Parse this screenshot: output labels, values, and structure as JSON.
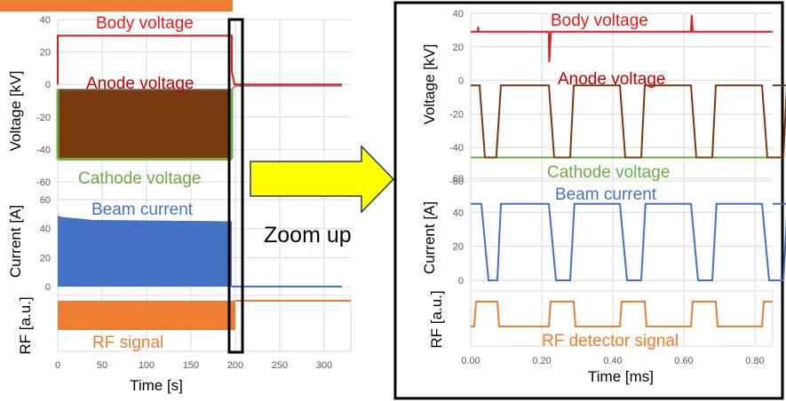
{
  "colors": {
    "body": "#e8181b",
    "anode": "#7a3a10",
    "cathode": "#6aac46",
    "beam": "#4472c4",
    "rf": "#ed7d31",
    "arrow_fill": "#ffff00",
    "arrow_stroke": "#1f3864",
    "grid": "#d9d9d9"
  },
  "zoom_label": "Zoom up",
  "chart_data": [
    {
      "type": "line",
      "xlabel": "Time [s]",
      "xlim": [
        0,
        320
      ],
      "xticks": [
        "0",
        "50",
        "100",
        "150",
        "200",
        "250",
        "300"
      ],
      "panels": [
        {
          "ylabel": "Voltage [kV]",
          "ylim": [
            -60,
            40
          ],
          "yticks": [
            "40",
            "20",
            "0",
            "-20",
            "-40",
            "-60"
          ],
          "series": [
            {
              "name": "Body voltage",
              "x": [
                0,
                0,
                196,
                196,
                199,
                320
              ],
              "values": [
                0,
                30,
                30,
                8,
                0,
                0
              ]
            },
            {
              "name": "Anode voltage",
              "x": [
                0,
                196,
                200,
                320
              ],
              "values": [
                -3,
                -3,
                -1,
                -1
              ],
              "band_low": -46
            },
            {
              "name": "Cathode voltage",
              "x": [
                0,
                196
              ],
              "values": [
                -46,
                -46
              ]
            }
          ]
        },
        {
          "ylabel": "Current [A]",
          "ylim": [
            0,
            60
          ],
          "yticks": [
            "60",
            "40",
            "20",
            "0"
          ],
          "series": [
            {
              "name": "Beam current",
              "x": [
                0,
                5,
                40,
                196,
                196,
                320
              ],
              "values": [
                49,
                48,
                46,
                45,
                0,
                0
              ],
              "band_low": 0
            }
          ]
        },
        {
          "ylabel": "RF [a.u.]",
          "series": [
            {
              "name": "RF signal",
              "x": [
                0,
                200,
                200,
                320
              ],
              "values": [
                1,
                1,
                1,
                1
              ],
              "band_low": 0
            }
          ]
        }
      ]
    },
    {
      "type": "line",
      "xlabel": "Time [ms]",
      "xlim": [
        0,
        0.85
      ],
      "xticks": [
        "0.00",
        "0.20",
        "0.40",
        "0.60",
        "0.80"
      ],
      "panels": [
        {
          "ylabel": "Voltage [kV]",
          "ylim": [
            -60,
            40
          ],
          "yticks": [
            "40",
            "20",
            "0",
            "-20",
            "-40",
            "-60"
          ],
          "series": [
            {
              "name": "Body voltage",
              "values_base": 29
            },
            {
              "name": "Anode voltage",
              "high": -3,
              "low": -46
            },
            {
              "name": "Cathode voltage",
              "values_base": -46
            }
          ]
        },
        {
          "ylabel": "Current [A]",
          "ylim": [
            0,
            60
          ],
          "yticks": [
            "60",
            "40",
            "20",
            "0"
          ],
          "series": [
            {
              "name": "Beam current",
              "high": 45,
              "low": 0
            }
          ]
        },
        {
          "ylabel": "RF [a.u.]",
          "series": [
            {
              "name": "RF detector signal",
              "high": 1,
              "low": 0
            }
          ]
        }
      ],
      "pulse_starts_ms": [
        0.0,
        0.22,
        0.42,
        0.62,
        0.82
      ],
      "pulse_ends_ms": [
        0.07,
        0.28,
        0.48,
        0.68
      ]
    }
  ]
}
